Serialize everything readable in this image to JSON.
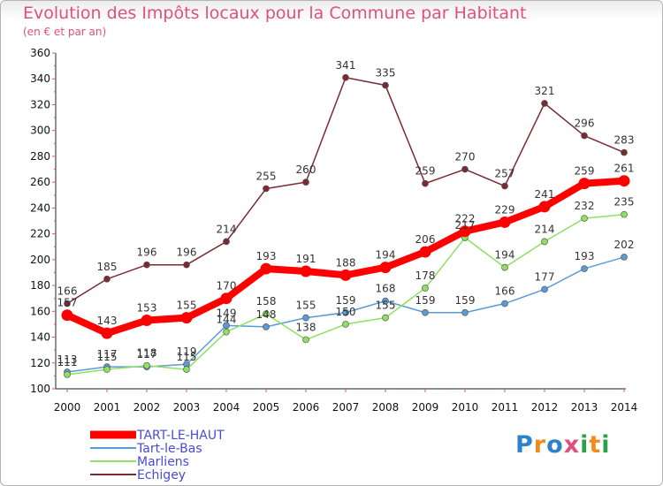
{
  "header": {
    "title": "Evolution des Impôts locaux pour la Commune par Habitant",
    "subtitle": "(en € et par an)"
  },
  "logo": {
    "text": "Proxiti",
    "letters": [
      {
        "ch": "P",
        "color": "#2d82c8"
      },
      {
        "ch": "r",
        "color": "#f08c1e"
      },
      {
        "ch": "o",
        "color": "#2d82c8"
      },
      {
        "ch": "x",
        "color": "#e0507a"
      },
      {
        "ch": "i",
        "color": "#2da04b"
      },
      {
        "ch": "t",
        "color": "#f08c1e"
      },
      {
        "ch": "i",
        "color": "#2da04b"
      }
    ]
  },
  "chart_data": {
    "type": "line",
    "title": "Evolution des Impôts locaux pour la Commune par Habitant",
    "subtitle": "(en € et par an)",
    "xlabel": "",
    "ylabel": "",
    "categories": [
      "2000",
      "2001",
      "2002",
      "2003",
      "2004",
      "2005",
      "2006",
      "2007",
      "2008",
      "2009",
      "2010",
      "2011",
      "2012",
      "2013",
      "2014"
    ],
    "ylim": [
      100,
      360
    ],
    "yticks": [
      100,
      120,
      140,
      160,
      180,
      200,
      220,
      240,
      260,
      280,
      300,
      320,
      340,
      360
    ],
    "grid": false,
    "legend_position": "bottom-left",
    "series": [
      {
        "name": "TART-LE-HAUT",
        "color": "#ff0000",
        "emphasis": true,
        "values": [
          157,
          143,
          153,
          155,
          170,
          193,
          191,
          188,
          194,
          206,
          222,
          229,
          241,
          259,
          261
        ]
      },
      {
        "name": "Tart-le-Bas",
        "color": "#5b9bd5",
        "emphasis": false,
        "values": [
          113,
          117,
          117,
          119,
          149,
          148,
          155,
          159,
          168,
          159,
          159,
          166,
          177,
          193,
          202
        ]
      },
      {
        "name": "Marliens",
        "color": "#90e060",
        "emphasis": false,
        "values": [
          111,
          115,
          118,
          115,
          144,
          158,
          138,
          150,
          155,
          178,
          217,
          194,
          214,
          232,
          235
        ]
      },
      {
        "name": "Echigey",
        "color": "#7a2a32",
        "emphasis": false,
        "values": [
          166,
          185,
          196,
          196,
          214,
          255,
          260,
          341,
          335,
          259,
          270,
          257,
          321,
          296,
          283
        ]
      }
    ]
  }
}
